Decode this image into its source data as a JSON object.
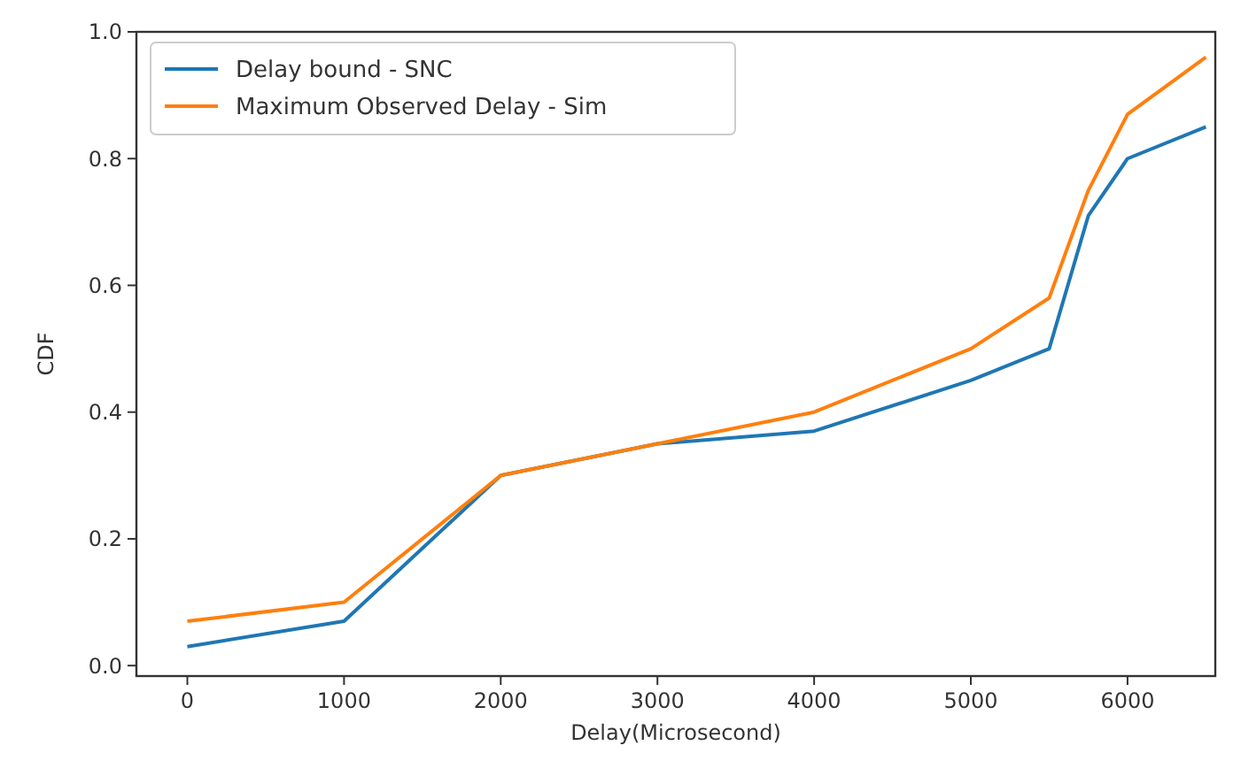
{
  "chart_data": {
    "type": "line",
    "xlabel": "Delay(Microsecond)",
    "ylabel": "CDF",
    "x": [
      0,
      1000,
      2000,
      3000,
      4000,
      5000,
      5500,
      5750,
      6000,
      6500
    ],
    "series": [
      {
        "name": "Delay bound - SNC",
        "color": "#1f77b4",
        "values": [
          0.03,
          0.07,
          0.3,
          0.35,
          0.37,
          0.45,
          0.5,
          0.71,
          0.8,
          0.85
        ]
      },
      {
        "name": "Maximum Observed Delay - Sim",
        "color": "#ff7f0e",
        "values": [
          0.07,
          0.1,
          0.3,
          0.35,
          0.4,
          0.5,
          0.58,
          0.75,
          0.87,
          0.96
        ]
      }
    ],
    "xlim": [
      -325,
      6560
    ],
    "ylim": [
      -0.0165,
      1.0
    ],
    "xticks": [
      0,
      1000,
      2000,
      3000,
      4000,
      5000,
      6000
    ],
    "yticks": [
      {
        "value": 0,
        "label": "0.0"
      },
      {
        "value": 0.2,
        "label": "0.2"
      },
      {
        "value": 0.4,
        "label": "0.4"
      },
      {
        "value": 0.6,
        "label": "0.6"
      },
      {
        "value": 0.8,
        "label": "0.8"
      },
      {
        "value": 1.0,
        "label": "1.0"
      }
    ],
    "legend": "top left",
    "grid": false,
    "marker": "none",
    "line_style": "solid"
  }
}
